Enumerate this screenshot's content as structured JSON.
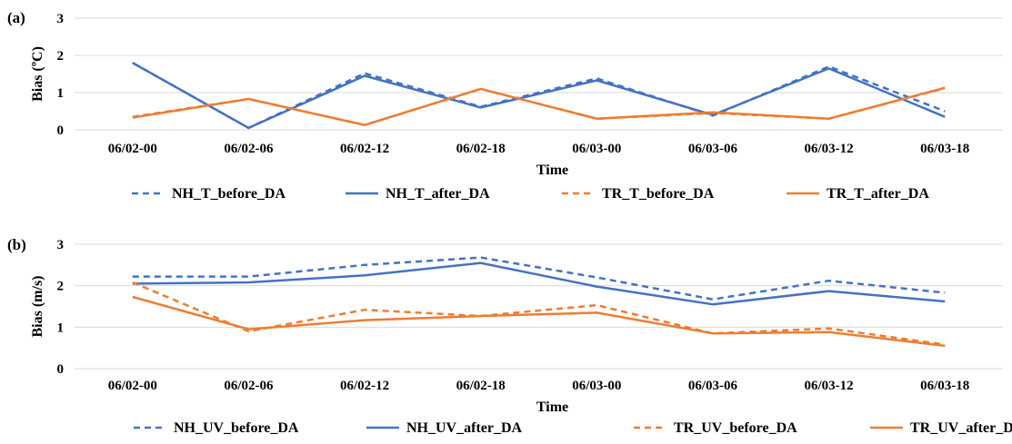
{
  "colors": {
    "nh": "#4472C4",
    "tr": "#ED7D31",
    "grid": "#d9d9d9"
  },
  "chart_data": [
    {
      "type": "line",
      "panel_label": "(a)",
      "xlabel": "Time",
      "ylabel": "Bias (ºC)",
      "ylim": [
        0,
        3
      ],
      "yticks": [
        "0",
        "1",
        "2",
        "3"
      ],
      "grid": "horizontal",
      "legend_position": "bottom",
      "categories": [
        "06/02-00",
        "06/02-06",
        "06/02-12",
        "06/02-18",
        "06/03-00",
        "06/03-06",
        "06/03-12",
        "06/03-18"
      ],
      "series": [
        {
          "name": "NH_T_before_DA",
          "color": "#4472C4",
          "dash": true,
          "values": [
            1.8,
            0.05,
            1.52,
            0.62,
            1.38,
            0.38,
            1.7,
            0.5
          ]
        },
        {
          "name": "NH_T_after_DA",
          "color": "#4472C4",
          "dash": false,
          "values": [
            1.8,
            0.05,
            1.45,
            0.6,
            1.33,
            0.4,
            1.65,
            0.35
          ]
        },
        {
          "name": "TR_T_before_DA",
          "color": "#ED7D31",
          "dash": true,
          "values": [
            0.35,
            0.83,
            0.13,
            1.1,
            0.3,
            0.45,
            0.3,
            1.12
          ]
        },
        {
          "name": "TR_T_after_DA",
          "color": "#ED7D31",
          "dash": false,
          "values": [
            0.33,
            0.83,
            0.13,
            1.1,
            0.3,
            0.47,
            0.3,
            1.13
          ]
        }
      ]
    },
    {
      "type": "line",
      "panel_label": "(b)",
      "xlabel": "Time",
      "ylabel": "Bias (m/s)",
      "ylim": [
        0,
        3
      ],
      "yticks": [
        "0",
        "1",
        "2",
        "3"
      ],
      "grid": "horizontal",
      "legend_position": "bottom",
      "categories": [
        "06/02-00",
        "06/02-06",
        "06/02-12",
        "06/02-18",
        "06/03-00",
        "06/03-06",
        "06/03-12",
        "06/03-18"
      ],
      "series": [
        {
          "name": "NH_UV_before_DA",
          "color": "#4472C4",
          "dash": true,
          "values": [
            2.22,
            2.22,
            2.5,
            2.68,
            2.2,
            1.67,
            2.12,
            1.83
          ]
        },
        {
          "name": "NH_UV_after_DA",
          "color": "#4472C4",
          "dash": false,
          "values": [
            2.05,
            2.08,
            2.25,
            2.55,
            1.98,
            1.55,
            1.87,
            1.62
          ]
        },
        {
          "name": "TR_UV_before_DA",
          "color": "#ED7D31",
          "dash": true,
          "values": [
            2.08,
            0.9,
            1.42,
            1.27,
            1.53,
            0.85,
            0.97,
            0.58
          ]
        },
        {
          "name": "TR_UV_after_DA",
          "color": "#ED7D31",
          "dash": false,
          "values": [
            1.73,
            0.95,
            1.17,
            1.27,
            1.35,
            0.85,
            0.88,
            0.55
          ]
        }
      ]
    }
  ]
}
